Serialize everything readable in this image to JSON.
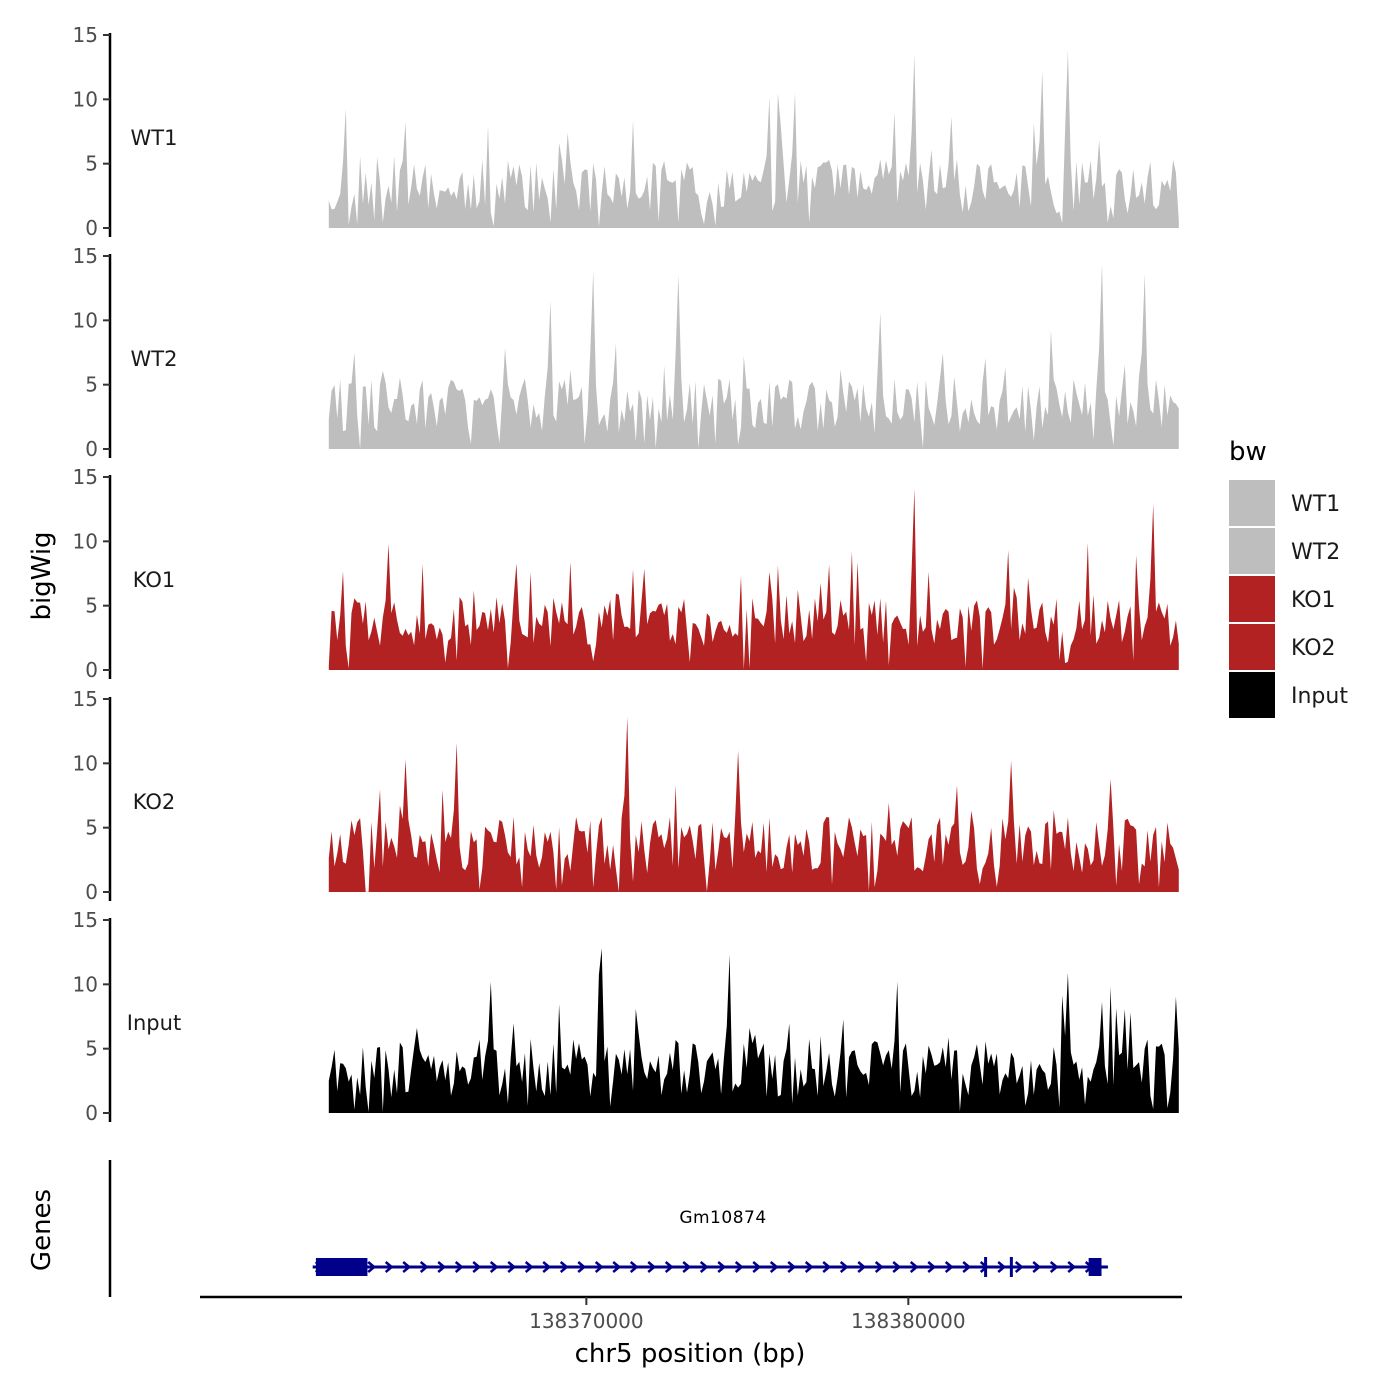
{
  "chart_data": {
    "type": "area",
    "chromosome": "chr5",
    "xlabel": "chr5 position (bp)",
    "ylabel": "bigWig",
    "genes_label": "Genes",
    "xlim": [
      138358000,
      138388500
    ],
    "ylim": [
      0,
      15
    ],
    "x_ticks": [
      138370000,
      138380000
    ],
    "x_tick_labels": [
      "138370000",
      "138380000"
    ],
    "y_ticks": [
      0,
      5,
      10,
      15
    ],
    "y_tick_labels": [
      "0",
      "5",
      "10",
      "15"
    ],
    "track_start": 138362000,
    "track_end": 138388400,
    "legend": {
      "title": "bw",
      "position": "right",
      "entries": [
        {
          "label": "WT1",
          "color": "#bebebe"
        },
        {
          "label": "WT2",
          "color": "#bebebe"
        },
        {
          "label": "KO1",
          "color": "#b22222"
        },
        {
          "label": "KO2",
          "color": "#b22222"
        },
        {
          "label": "Input",
          "color": "#000000"
        }
      ]
    },
    "series": [
      {
        "name": "WT1",
        "color": "#bebebe",
        "seed": 11,
        "base": 2.6,
        "spread": 4.2,
        "peaks": [
          [
            0.02,
            9.3
          ],
          [
            0.52,
            10.2
          ],
          [
            0.69,
            13.5
          ],
          [
            0.87,
            13.8
          ],
          [
            0.84,
            12.2
          ],
          [
            0.55,
            10.5
          ]
        ]
      },
      {
        "name": "WT2",
        "color": "#bebebe",
        "seed": 29,
        "base": 2.8,
        "spread": 4.4,
        "peaks": [
          [
            0.31,
            13.8
          ],
          [
            0.26,
            11.5
          ],
          [
            0.41,
            13.5
          ],
          [
            0.65,
            10.6
          ],
          [
            0.91,
            14.4
          ],
          [
            0.96,
            13.6
          ]
        ]
      },
      {
        "name": "KO1",
        "color": "#b22222",
        "seed": 47,
        "base": 3.2,
        "spread": 3.9,
        "peaks": [
          [
            0.07,
            9.8
          ],
          [
            0.69,
            14.1
          ],
          [
            0.97,
            12.9
          ],
          [
            0.59,
            8.2
          ],
          [
            0.8,
            9.3
          ]
        ]
      },
      {
        "name": "KO2",
        "color": "#b22222",
        "seed": 83,
        "base": 3.0,
        "spread": 4.4,
        "peaks": [
          [
            0.35,
            13.6
          ],
          [
            0.15,
            11.6
          ],
          [
            0.48,
            11.0
          ],
          [
            0.92,
            8.8
          ],
          [
            0.09,
            10.3
          ]
        ]
      },
      {
        "name": "Input",
        "color": "#000000",
        "seed": 131,
        "base": 2.8,
        "spread": 4.6,
        "peaks": [
          [
            0.32,
            12.8
          ],
          [
            0.47,
            12.3
          ],
          [
            0.87,
            10.9
          ],
          [
            0.19,
            10.2
          ],
          [
            0.67,
            10.2
          ]
        ]
      }
    ],
    "gene": {
      "name": "Gm10874",
      "color": "#00008b",
      "start": 138361500,
      "end": 138386200,
      "strand": "+",
      "exons": [
        [
          138361600,
          138363200
        ],
        [
          138385600,
          138386000
        ]
      ],
      "markers": [
        138382400,
        138383200
      ]
    }
  }
}
